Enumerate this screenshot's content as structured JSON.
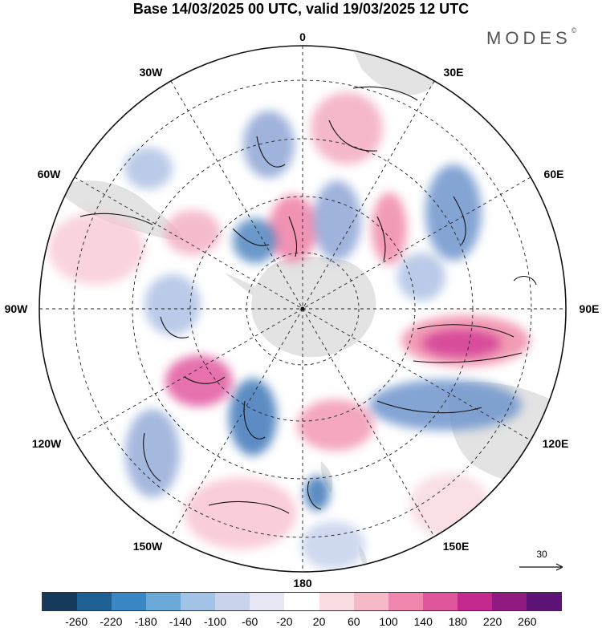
{
  "header": {
    "title": "Base 14/03/2025 00 UTC, valid 19/03/2025 12 UTC",
    "brand": "MODES",
    "brand_mark": "©"
  },
  "map": {
    "projection": "south-polar-stereographic",
    "longitude_labels": {
      "lon_0": "0",
      "lon_30E": "30E",
      "lon_60E": "60E",
      "lon_90E": "90E",
      "lon_120E": "120E",
      "lon_150E": "150E",
      "lon_180": "180",
      "lon_150W": "150W",
      "lon_120W": "120W",
      "lon_90W": "90W",
      "lon_60W": "60W",
      "lon_30W": "30W"
    },
    "reference_vector": {
      "label": "30"
    },
    "colors": {
      "land": "#e4e4e4",
      "negative_anomaly": "#8fa6d6",
      "positive_anomaly": "#f08aa8"
    }
  },
  "colorbar": {
    "colors": [
      "#163a5c",
      "#1e5f94",
      "#3a87c4",
      "#6aa8d8",
      "#a3c3e6",
      "#c9d4ec",
      "#e6e6f4",
      "#ffffff",
      "#f9dde2",
      "#f5b9c8",
      "#ef86ad",
      "#e0569d",
      "#c42a8e",
      "#8e1a82",
      "#5e1377"
    ],
    "tick_labels": [
      "-260",
      "-220",
      "-180",
      "-140",
      "-100",
      "-60",
      "-20",
      "20",
      "60",
      "100",
      "140",
      "180",
      "220",
      "260"
    ]
  }
}
